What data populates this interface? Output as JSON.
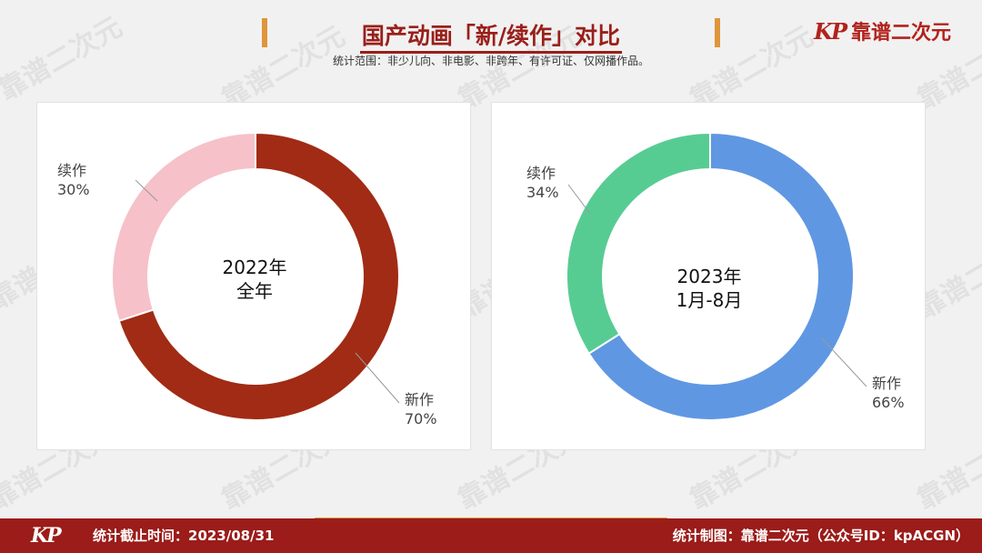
{
  "header": {
    "title": "国产动画「新/续作」对比",
    "subtitle": "统计范围：非少儿向、非电影、非跨年、有许可证、仅网播作品。",
    "logo_mark": "KP",
    "logo_text": "靠谱二次元"
  },
  "watermark_text": "靠谱二次元",
  "chart_data": [
    {
      "type": "pie",
      "center_label": [
        "2022年",
        "全年"
      ],
      "categories": [
        "新作",
        "续作"
      ],
      "values": [
        70,
        30
      ],
      "labels": [
        "70%",
        "30%"
      ],
      "colors": [
        "#a12b14",
        "#f6c1c9"
      ]
    },
    {
      "type": "pie",
      "center_label": [
        "2023年",
        "1月-8月"
      ],
      "categories": [
        "新作",
        "续作"
      ],
      "values": [
        66,
        34
      ],
      "labels": [
        "66%",
        "34%"
      ],
      "colors": [
        "#6097e3",
        "#57cc92"
      ]
    }
  ],
  "footer": {
    "logo_mark": "KP",
    "left": "统计截止时间：2023/08/31",
    "right": "统计制图：靠谱二次元（公众号ID：kpACGN）"
  },
  "colors": {
    "brand_red": "#9b1c19",
    "accent_orange": "#e0953a"
  }
}
